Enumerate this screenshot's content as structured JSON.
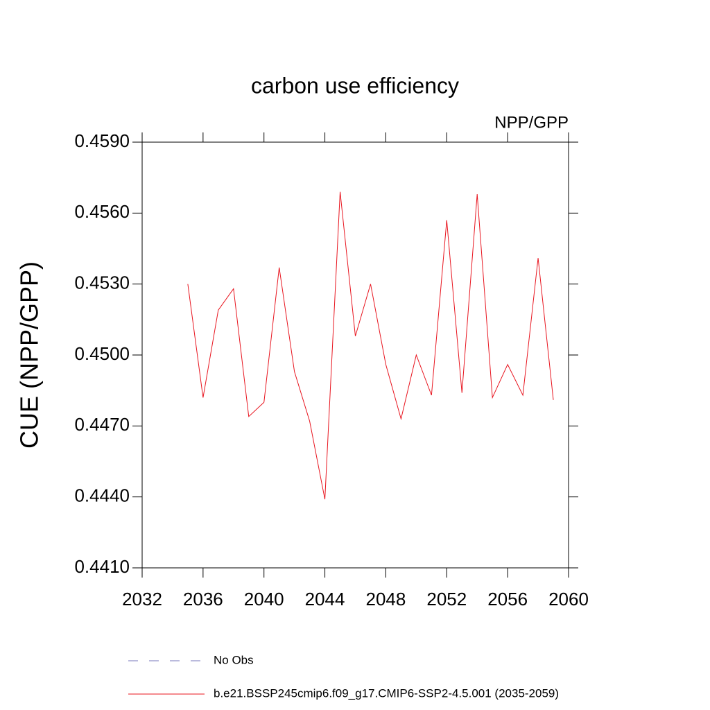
{
  "chart_data": {
    "type": "line",
    "title": "carbon use efficiency",
    "subtitle": "NPP/GPP",
    "ylabel": "CUE  (NPP/GPP)",
    "x": [
      2035,
      2036,
      2037,
      2038,
      2039,
      2040,
      2041,
      2042,
      2043,
      2044,
      2045,
      2046,
      2047,
      2048,
      2049,
      2050,
      2051,
      2052,
      2053,
      2054,
      2055,
      2056,
      2057,
      2058,
      2059
    ],
    "series": [
      {
        "name": "No Obs",
        "color": "#7777bb",
        "dashed": true,
        "values": [
          null,
          null,
          null,
          null,
          null,
          null,
          null,
          null,
          null,
          null,
          null,
          null,
          null,
          null,
          null,
          null,
          null,
          null,
          null,
          null,
          null,
          null,
          null,
          null,
          null
        ]
      },
      {
        "name": "b.e21.BSSP245cmip6.f09_g17.CMIP6-SSP2-4.5.001 (2035-2059)",
        "color": "#e8141e",
        "dashed": false,
        "values": [
          0.453,
          0.4482,
          0.4519,
          0.4528,
          0.4474,
          0.448,
          0.4537,
          0.4493,
          0.4472,
          0.4439,
          0.4569,
          0.4508,
          0.453,
          0.4496,
          0.4473,
          0.45,
          0.4483,
          0.4557,
          0.4484,
          0.4568,
          0.4482,
          0.4496,
          0.4483,
          0.4541,
          0.4481
        ]
      }
    ],
    "xlim": [
      2032,
      2060
    ],
    "xticks": [
      2032,
      2036,
      2040,
      2044,
      2048,
      2052,
      2056,
      2060
    ],
    "ylim": [
      0.441,
      0.459
    ],
    "yticks": [
      {
        "value": 0.441,
        "label": "0.4410"
      },
      {
        "value": 0.444,
        "label": "0.4440"
      },
      {
        "value": 0.447,
        "label": "0.4470"
      },
      {
        "value": 0.45,
        "label": "0.4500"
      },
      {
        "value": 0.453,
        "label": "0.4530"
      },
      {
        "value": 0.456,
        "label": "0.4560"
      },
      {
        "value": 0.459,
        "label": "0.4590"
      }
    ],
    "grid": false
  }
}
